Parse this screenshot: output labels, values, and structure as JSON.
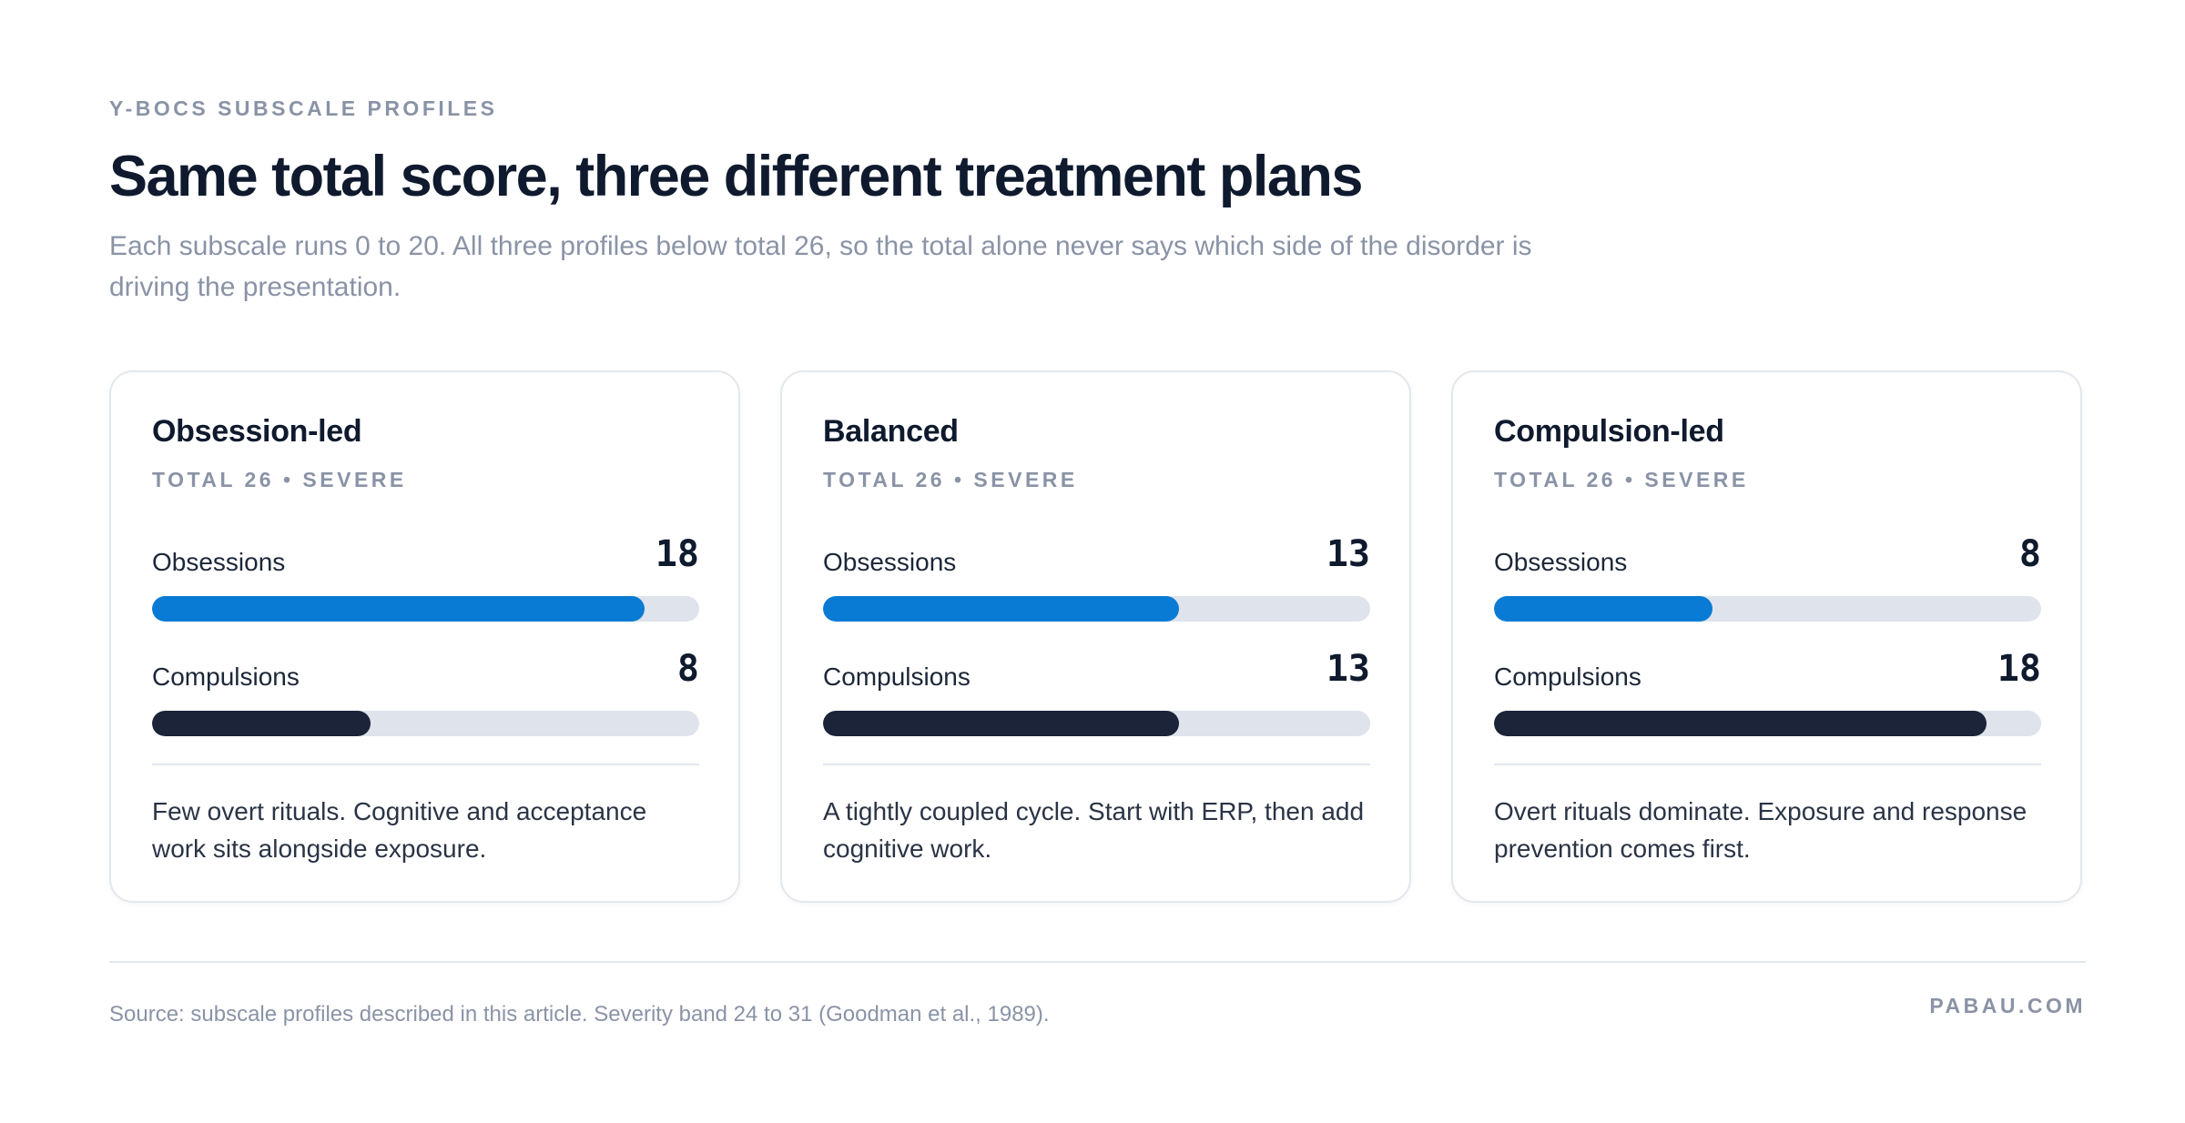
{
  "header": {
    "eyebrow": "Y-BOCS SUBSCALE PROFILES",
    "title": "Same total score, three different treatment plans",
    "subtitle": "Each subscale runs 0 to 20. All three profiles below total 26, so the total alone never says which side of the disorder is driving the presentation."
  },
  "cards": [
    {
      "title": "Obsession-led",
      "meta": "TOTAL 26 • SEVERE",
      "obsessions_label": "Obsessions",
      "obsessions_value": "18",
      "compulsions_label": "Compulsions",
      "compulsions_value": "8",
      "note": "Few overt rituals. Cognitive and acceptance work sits alongside exposure."
    },
    {
      "title": "Balanced",
      "meta": "TOTAL 26 • SEVERE",
      "obsessions_label": "Obsessions",
      "obsessions_value": "13",
      "compulsions_label": "Compulsions",
      "compulsions_value": "13",
      "note": "A tightly coupled cycle. Start with ERP, then add cognitive work."
    },
    {
      "title": "Compulsion-led",
      "meta": "TOTAL 26 • SEVERE",
      "obsessions_label": "Obsessions",
      "obsessions_value": "8",
      "compulsions_label": "Compulsions",
      "compulsions_value": "18",
      "note": "Overt rituals dominate. Exposure and response prevention comes first."
    }
  ],
  "footer": {
    "source": "Source: subscale profiles described in this article. Severity band 24 to 31 (Goodman et al., 1989).",
    "brand": "PABAU.COM"
  },
  "colors": {
    "obsessions": "#0a7bd4",
    "compulsions": "#1b2438",
    "track": "#dfe3ec"
  },
  "chart_data": {
    "type": "bar",
    "orientation": "horizontal",
    "categories": [
      "Obsession-led",
      "Balanced",
      "Compulsion-led"
    ],
    "series": [
      {
        "name": "Obsessions",
        "values": [
          18,
          13,
          8
        ]
      },
      {
        "name": "Compulsions",
        "values": [
          8,
          13,
          18
        ]
      }
    ],
    "xlim": [
      0,
      20
    ],
    "title": "Same total score, three different treatment plans"
  }
}
